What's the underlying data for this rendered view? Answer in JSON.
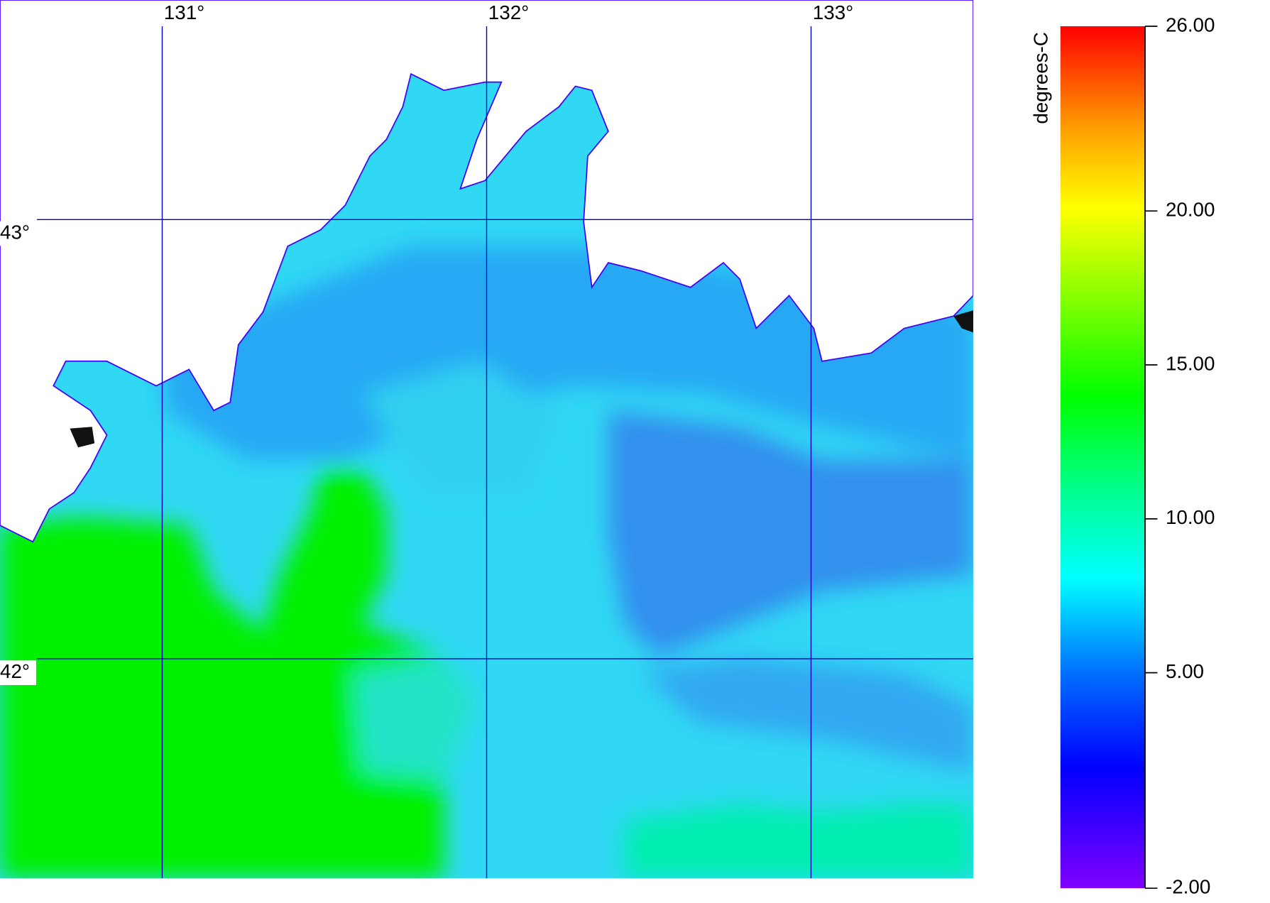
{
  "map": {
    "xlim": [
      130.5,
      133.5
    ],
    "ylim": [
      41.5,
      43.5
    ],
    "grid_color": "#0000c0",
    "lon_lines": [
      {
        "value": 131,
        "label": "131°"
      },
      {
        "value": 132,
        "label": "132°"
      },
      {
        "value": 133,
        "label": "133°"
      }
    ],
    "lat_lines": [
      {
        "value": 43,
        "label": "43°"
      },
      {
        "value": 42,
        "label": "42°"
      }
    ]
  },
  "colorbar": {
    "label": "degrees-C",
    "range": [
      -2,
      26
    ],
    "ticks": [
      {
        "value": -2,
        "label": "-2.00"
      },
      {
        "value": 5,
        "label": "5.00"
      },
      {
        "value": 10,
        "label": "10.00"
      },
      {
        "value": 15,
        "label": "15.00"
      },
      {
        "value": 20,
        "label": "20.00"
      },
      {
        "value": 26,
        "label": "26.00"
      }
    ]
  }
}
